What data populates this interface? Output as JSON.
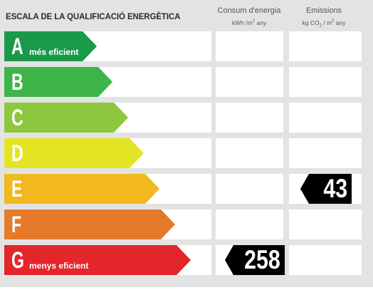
{
  "title": "ESCALA DE LA QUALIFICACIÓ ENERGÈTICA",
  "columns": {
    "energy": {
      "title": "Consum d'energia",
      "unit_main": "kWh /m",
      "unit_sup": "2",
      "unit_tail": "  any"
    },
    "emissions": {
      "title": "Emissions",
      "unit_main": "kg CO",
      "unit_sub": "2",
      "unit_mid": "  / m",
      "unit_sup": "2",
      "unit_tail": "  any"
    }
  },
  "bands": [
    {
      "letter": "A",
      "sublabel": "més eficient",
      "color": "#1a9a48"
    },
    {
      "letter": "B",
      "sublabel": "",
      "color": "#3db54a"
    },
    {
      "letter": "C",
      "sublabel": "",
      "color": "#8dc63f"
    },
    {
      "letter": "D",
      "sublabel": "",
      "color": "#e3e524"
    },
    {
      "letter": "E",
      "sublabel": "",
      "color": "#f2b81f"
    },
    {
      "letter": "F",
      "sublabel": "",
      "color": "#e47a2a"
    },
    {
      "letter": "G",
      "sublabel": "menys eficient",
      "color": "#e3262b"
    }
  ],
  "ratings": {
    "energy": {
      "value": "258",
      "band": "G"
    },
    "emissions": {
      "value": "43",
      "band": "E"
    }
  }
}
